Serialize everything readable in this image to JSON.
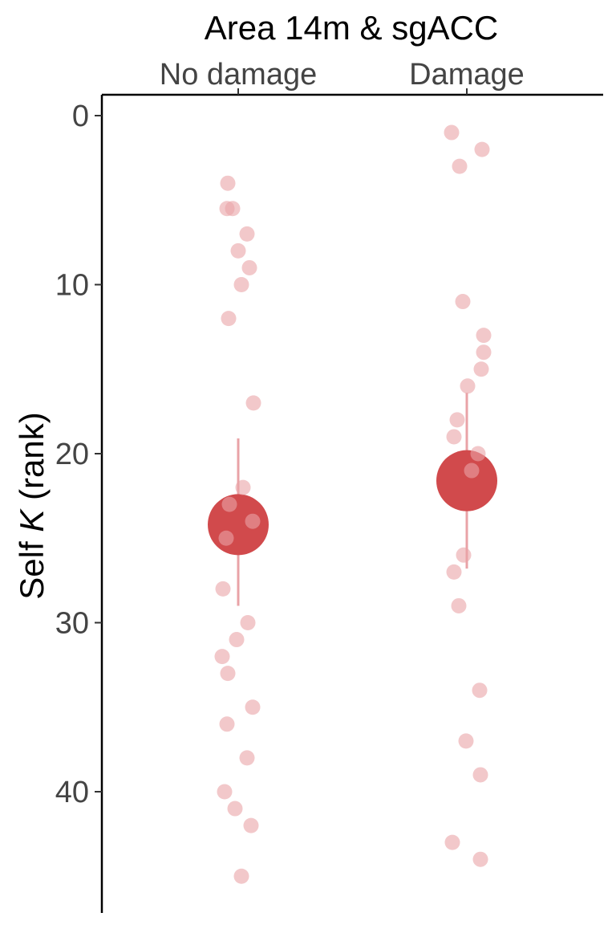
{
  "chart_data": {
    "type": "scatter",
    "title": "Area 14m & sgACC",
    "ylabel": {
      "prefix": "Self ",
      "italic": "K",
      "suffix": " (rank)"
    },
    "xlabel": "",
    "categories": [
      "No damage",
      "Damage"
    ],
    "ylim": [
      47.5,
      -1.2
    ],
    "y_reversed": true,
    "y_ticks": [
      0,
      10,
      20,
      30,
      40
    ],
    "x_axis_position": "top",
    "grid": false,
    "colors": {
      "point": "#e9a3a7",
      "mean": "#d14a4c",
      "errorbar": "#e9a3a7",
      "axis": "#000000"
    },
    "series": [
      {
        "category": "No damage",
        "points": [
          4,
          5.5,
          5.5,
          7,
          8,
          9,
          10,
          12,
          17,
          22,
          23,
          24,
          25,
          28,
          30,
          31,
          32,
          33,
          35,
          36,
          38,
          40,
          41,
          42,
          45
        ],
        "mean": 24.2,
        "error_low": 19.1,
        "error_high": 29.0
      },
      {
        "category": "Damage",
        "points": [
          1,
          2,
          3,
          11,
          13,
          14,
          15,
          16,
          18,
          19,
          20,
          21,
          26,
          27,
          29,
          34,
          37,
          39,
          43,
          44
        ],
        "mean": 21.6,
        "error_low": 16.4,
        "error_high": 26.8
      }
    ]
  }
}
